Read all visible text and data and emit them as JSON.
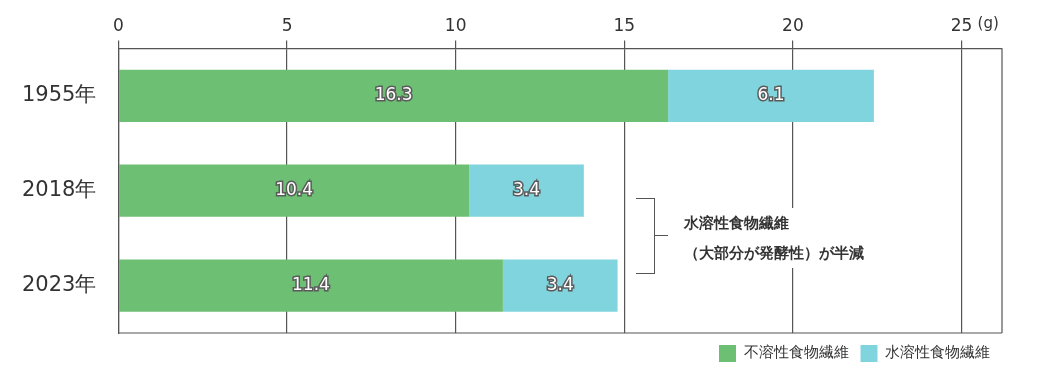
{
  "chart_data": {
    "type": "bar",
    "orientation": "horizontal",
    "stacked": true,
    "categories": [
      "1955年",
      "2018年",
      "2023年"
    ],
    "series": [
      {
        "name": "不溶性食物繊維",
        "color": "#6cbf73",
        "values": [
          16.3,
          10.4,
          11.4
        ]
      },
      {
        "name": "水溶性食物繊維",
        "color": "#7fd4de",
        "values": [
          6.1,
          3.4,
          3.4
        ]
      }
    ],
    "xlabel": "(g)",
    "xlim": [
      0,
      26.2
    ],
    "xticks": [
      0,
      5,
      10,
      15,
      20,
      25
    ],
    "grid": "x",
    "legend": "bottom right",
    "data_labels": true,
    "annotations": [
      "水溶性食物繊維",
      "（大部分が発酵性）が半減"
    ]
  }
}
